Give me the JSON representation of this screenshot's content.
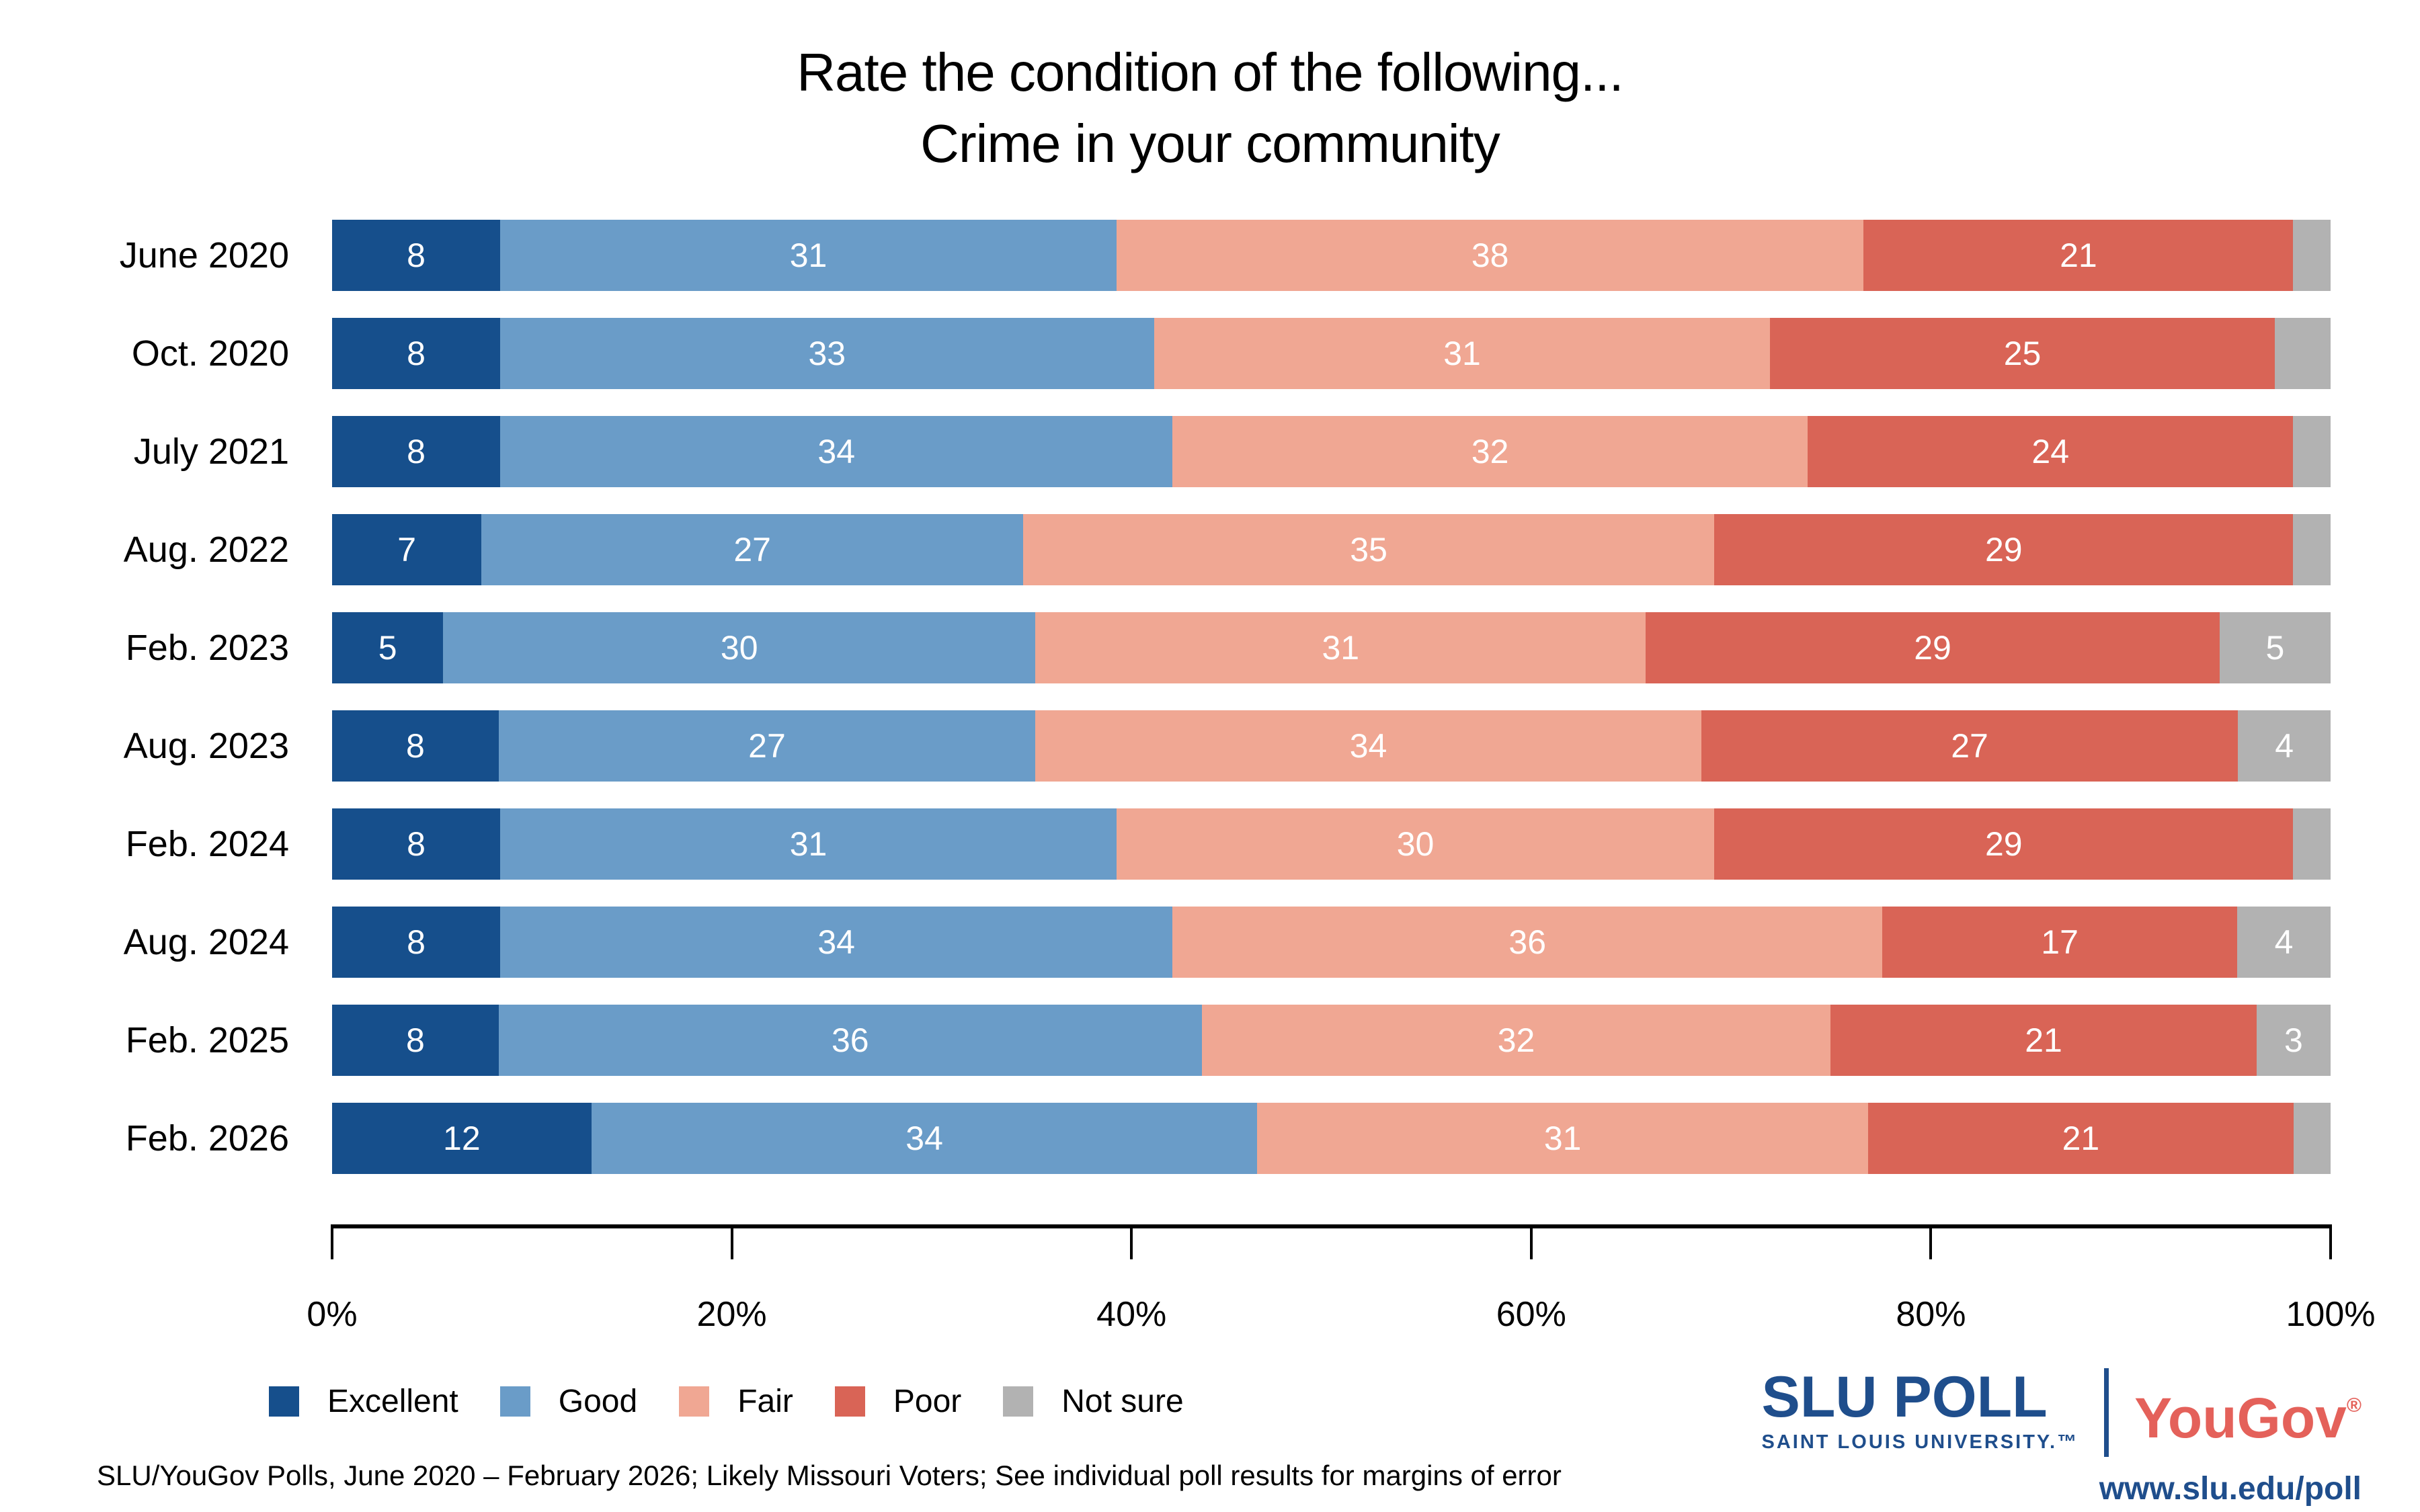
{
  "chart_data": {
    "type": "bar",
    "orientation": "horizontal-stacked",
    "title": "Rate the condition of the following...",
    "subtitle": "Crime in your community",
    "categories": [
      "June 2020",
      "Oct. 2020",
      "July 2021",
      "Aug. 2022",
      "Feb. 2023",
      "Aug. 2023",
      "Feb. 2024",
      "Aug. 2024",
      "Feb. 2025",
      "Feb. 2026"
    ],
    "series": [
      {
        "name": "Excellent",
        "color": "#164F8C",
        "values": [
          8,
          8,
          8,
          7,
          5,
          8,
          8,
          8,
          8,
          12
        ],
        "labels": [
          "8",
          "8",
          "8",
          "7",
          "5",
          "8",
          "8",
          "8",
          "8",
          "12"
        ]
      },
      {
        "name": "Good",
        "color": "#6A9CC8",
        "values": [
          31,
          33,
          34,
          27,
          30,
          27,
          31,
          34,
          36,
          34
        ],
        "labels": [
          "31",
          "33",
          "34",
          "27",
          "30",
          "27",
          "31",
          "34",
          "36",
          "34"
        ]
      },
      {
        "name": "Fair",
        "color": "#F0A793",
        "values": [
          38,
          31,
          32,
          35,
          31,
          34,
          30,
          36,
          32,
          31
        ],
        "labels": [
          "38",
          "31",
          "32",
          "35",
          "31",
          "34",
          "30",
          "36",
          "32",
          "31"
        ]
      },
      {
        "name": "Poor",
        "color": "#D96456",
        "values": [
          21,
          25,
          24,
          29,
          29,
          27,
          29,
          17,
          21,
          21
        ],
        "labels": [
          "21",
          "25",
          "24",
          "29",
          "29",
          "27",
          "29",
          "17",
          "21",
          "21"
        ]
      },
      {
        "name": "Not sure",
        "color": "#B2B2B2",
        "values": [
          2,
          3,
          2,
          2,
          5,
          4,
          2,
          4,
          3,
          2
        ],
        "labels": [
          "",
          "",
          "",
          "",
          "5",
          "4",
          "",
          "4",
          "3",
          ""
        ]
      }
    ],
    "x_ticks": [
      "0%",
      "20%",
      "40%",
      "60%",
      "80%",
      "100%"
    ],
    "xlim": [
      0,
      100
    ],
    "grid": false,
    "legend_position": "bottom-left",
    "value_label_color": "#FFFFFF"
  },
  "footer": {
    "source": "SLU/YouGov Polls, June 2020 – February 2026; Likely Missouri Voters; See individual poll results for margins of error"
  },
  "branding": {
    "slu_poll": "SLU POLL",
    "slu_sub": "SAINT LOUIS UNIVERSITY.™",
    "yougov": "YouGov",
    "yougov_reg": "®",
    "url": "www.slu.edu/poll",
    "slu_blue": "#1F4E8C",
    "yougov_red": "#E4615A"
  }
}
